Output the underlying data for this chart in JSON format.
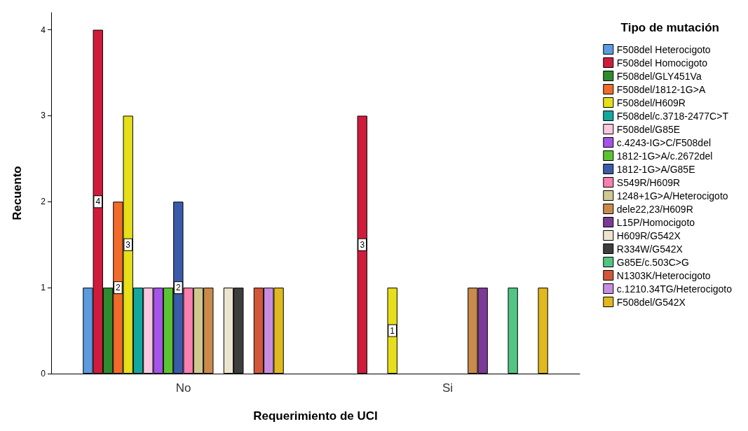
{
  "chart_data": {
    "type": "bar",
    "xlabel": "Requerimiento de UCI",
    "ylabel": "Recuento",
    "legend_title": "Tipo de mutación",
    "categories": [
      "No",
      "Si"
    ],
    "series": [
      {
        "name": "F508del Heterocigoto",
        "color": "#5b9be0",
        "values": [
          1,
          null
        ]
      },
      {
        "name": "F508del Homocigoto",
        "color": "#d01c3c",
        "values": [
          4,
          3
        ],
        "value_labels": [
          "4",
          "3"
        ]
      },
      {
        "name": "F508del/GLY451Va",
        "color": "#2e8b2e",
        "values": [
          1,
          null
        ]
      },
      {
        "name": "F508del/1812-1G>A",
        "color": "#f26b2a",
        "values": [
          2,
          null
        ],
        "value_labels": [
          "2",
          null
        ]
      },
      {
        "name": "F508del/H609R",
        "color": "#e6df1a",
        "values": [
          3,
          1
        ],
        "value_labels": [
          "3",
          "1"
        ]
      },
      {
        "name": "F508del/c.3718-2477C>T",
        "color": "#13a89e",
        "values": [
          1,
          null
        ]
      },
      {
        "name": "F508del/G85E",
        "color": "#f9c7df",
        "values": [
          1,
          null
        ]
      },
      {
        "name": "c.4243-IG>C/F508del",
        "color": "#a454e8",
        "values": [
          1,
          null
        ]
      },
      {
        "name": "1812-1G>A/c.2672del",
        "color": "#5cc433",
        "values": [
          1,
          null
        ]
      },
      {
        "name": "1812-1G>A/G85E",
        "color": "#3a5ba9",
        "values": [
          2,
          null
        ],
        "value_labels": [
          "2",
          null
        ]
      },
      {
        "name": "S549R/H609R",
        "color": "#f97fae",
        "values": [
          1,
          null
        ]
      },
      {
        "name": "1248+1G>A/Heterocigoto",
        "color": "#cfc88f",
        "values": [
          1,
          null
        ]
      },
      {
        "name": "dele22,23/H609R",
        "color": "#c98a4b",
        "values": [
          1,
          1
        ]
      },
      {
        "name": "L15P/Homocigoto",
        "color": "#7b3a96",
        "values": [
          null,
          1
        ]
      },
      {
        "name": "H609R/G542X",
        "color": "#ece4cf",
        "values": [
          1,
          null
        ]
      },
      {
        "name": "R334W/G542X",
        "color": "#3d3d3d",
        "values": [
          1,
          null
        ]
      },
      {
        "name": "G85E/c.503C>G",
        "color": "#52c585",
        "values": [
          null,
          1
        ]
      },
      {
        "name": "N1303K/Heterocigoto",
        "color": "#d1563a",
        "values": [
          1,
          null
        ]
      },
      {
        "name": "c.1210.34TG/Heterocigoto",
        "color": "#c98de0",
        "values": [
          1,
          null
        ]
      },
      {
        "name": "F508del/G542X",
        "color": "#e0b81f",
        "values": [
          1,
          1
        ]
      }
    ],
    "ylim": [
      0,
      4.2
    ],
    "yticks": [
      0,
      1,
      2,
      3,
      4
    ],
    "grid": false,
    "legend": "right"
  }
}
